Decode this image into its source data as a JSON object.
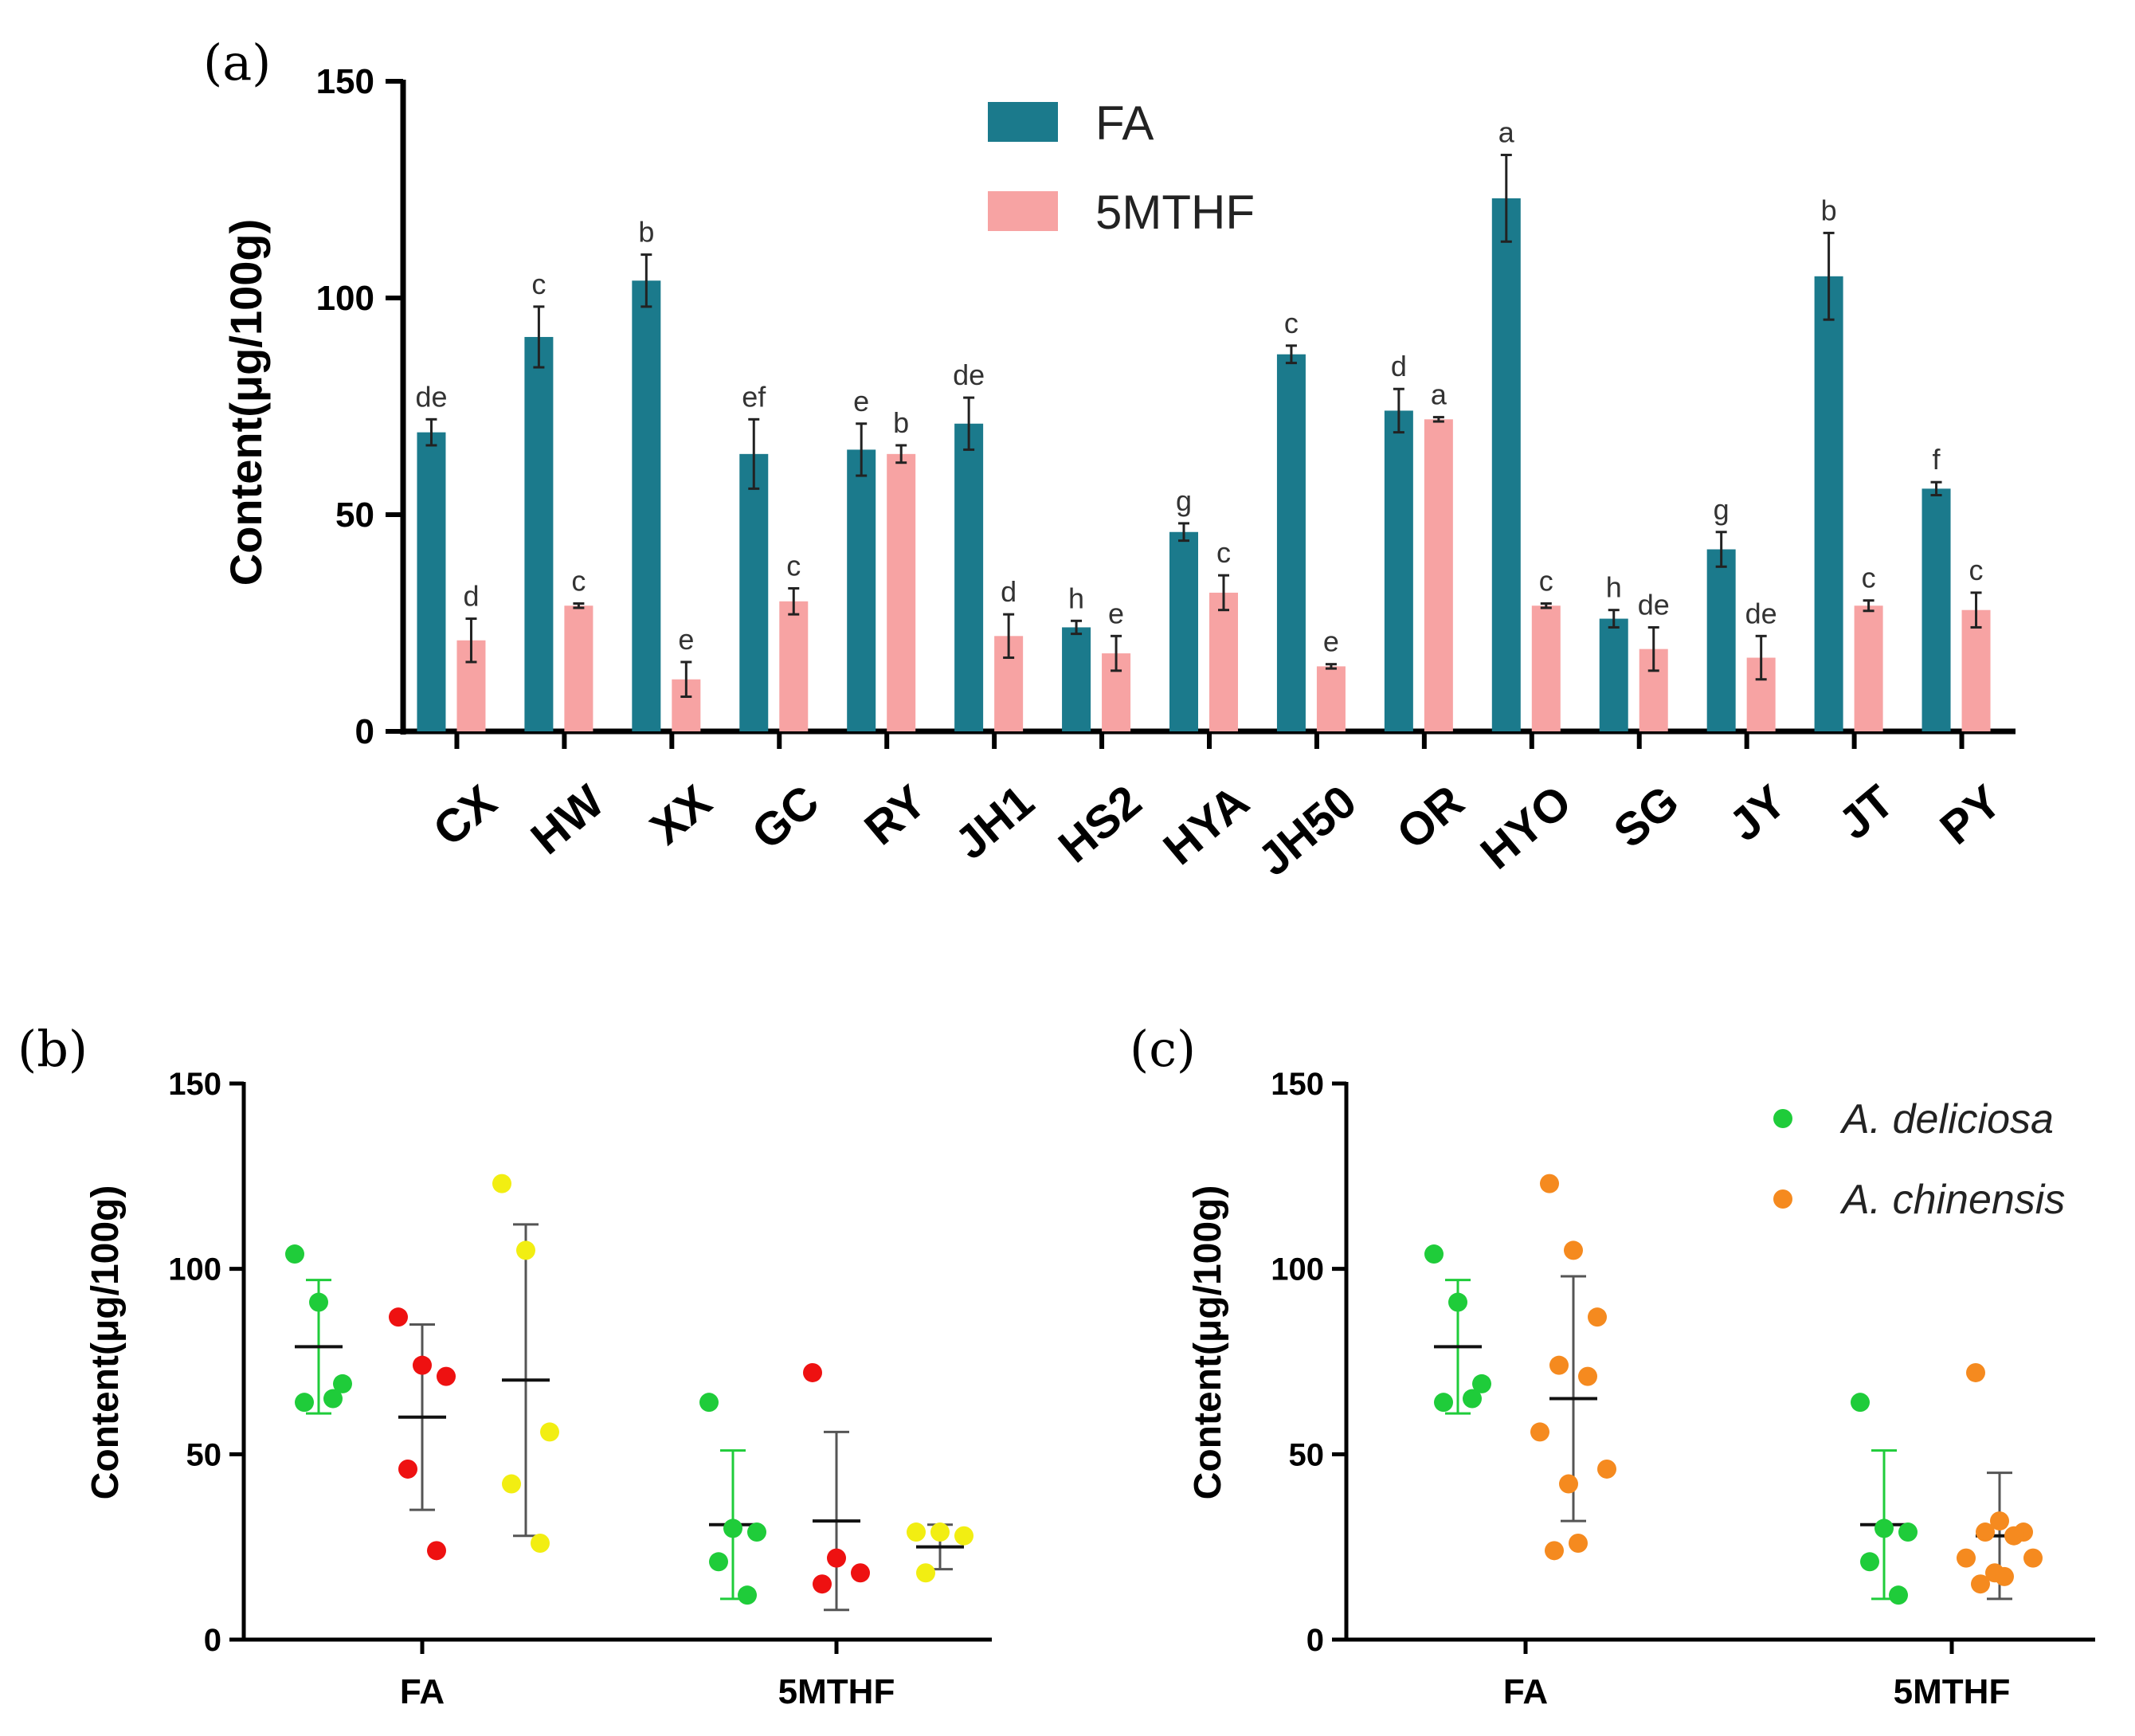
{
  "panels": {
    "a_label": "(a)",
    "b_label": "(b)",
    "c_label": "(c)"
  },
  "colors": {
    "fa_bar": "#1b7a8c",
    "mthf_bar": "#f7a3a3",
    "green": "#1fcc3a",
    "red": "#ee1111",
    "yellow": "#f2ee12",
    "orange": "#f58a1f"
  },
  "chart_data": [
    {
      "id": "a",
      "type": "bar",
      "title": "",
      "xlabel": "",
      "ylabel": "Content(μg/100g)",
      "ylim": [
        0,
        150
      ],
      "yticks": [
        0,
        50,
        100,
        150
      ],
      "legend": {
        "position": "top-center",
        "items": [
          "FA",
          "5MTHF"
        ]
      },
      "categories": [
        "CX",
        "HW",
        "XX",
        "GC",
        "RY",
        "JH1",
        "HS2",
        "HYA",
        "JH50",
        "OR",
        "HYO",
        "SG",
        "JY",
        "JT",
        "PY"
      ],
      "series": [
        {
          "name": "FA",
          "values": [
            69,
            91,
            104,
            64,
            65,
            71,
            24,
            46,
            87,
            74,
            123,
            26,
            42,
            105,
            56
          ],
          "errors": [
            3,
            7,
            6,
            8,
            6,
            6,
            1.5,
            2,
            2,
            5,
            10,
            2,
            4,
            10,
            1.5
          ],
          "letters": [
            "de",
            "c",
            "b",
            "ef",
            "e",
            "de",
            "h",
            "g",
            "c",
            "d",
            "a",
            "h",
            "g",
            "b",
            "f"
          ]
        },
        {
          "name": "5MTHF",
          "values": [
            21,
            29,
            12,
            30,
            64,
            22,
            18,
            32,
            15,
            72,
            29,
            19,
            17,
            29,
            28
          ],
          "errors": [
            5,
            0.5,
            4,
            3,
            2,
            5,
            4,
            4,
            0.5,
            0.5,
            0.5,
            5,
            5,
            1.2,
            4
          ],
          "letters": [
            "d",
            "c",
            "e",
            "c",
            "b",
            "d",
            "e",
            "c",
            "e",
            "a",
            "c",
            "de",
            "de",
            "c",
            "c"
          ]
        }
      ]
    },
    {
      "id": "b",
      "type": "scatter",
      "title": "",
      "xlabel": "",
      "ylabel": "Content(μg/100g)",
      "ylim": [
        0,
        150
      ],
      "yticks": [
        0,
        50,
        100,
        150
      ],
      "groups": [
        "FA",
        "5MTHF"
      ],
      "series": [
        {
          "name": "green",
          "color": "green",
          "FA": [
            104,
            91,
            69,
            64,
            65
          ],
          "5MTHF": [
            64,
            30,
            29,
            21,
            12
          ],
          "FA_mean": 79,
          "FA_sd": 18,
          "5MTHF_mean": 31,
          "5MTHF_sd": 20
        },
        {
          "name": "red",
          "color": "red",
          "FA": [
            87,
            74,
            71,
            46,
            24
          ],
          "5MTHF": [
            72,
            22,
            18,
            15
          ],
          "FA_mean": 60,
          "FA_sd": 25,
          "5MTHF_mean": 32,
          "5MTHF_sd": 24
        },
        {
          "name": "yellow",
          "color": "yellow",
          "FA": [
            123,
            105,
            56,
            42,
            26
          ],
          "5MTHF": [
            29,
            29,
            28,
            18
          ],
          "FA_mean": 70,
          "FA_sd": 42,
          "5MTHF_mean": 25,
          "5MTHF_sd": 6
        }
      ]
    },
    {
      "id": "c",
      "type": "scatter",
      "title": "",
      "xlabel": "",
      "ylabel": "Content(μg/100g)",
      "ylim": [
        0,
        150
      ],
      "yticks": [
        0,
        50,
        100,
        150
      ],
      "groups": [
        "FA",
        "5MTHF"
      ],
      "legend": {
        "position": "top-right",
        "items": [
          "A. deliciosa",
          "A. chinensis"
        ]
      },
      "series": [
        {
          "name": "A. deliciosa",
          "color": "green",
          "FA": [
            104,
            91,
            69,
            64,
            65
          ],
          "5MTHF": [
            64,
            30,
            29,
            21,
            12
          ],
          "FA_mean": 79,
          "FA_sd": 18,
          "5MTHF_mean": 31,
          "5MTHF_sd": 20
        },
        {
          "name": "A. chinensis",
          "color": "orange",
          "FA": [
            123,
            105,
            87,
            74,
            71,
            56,
            46,
            42,
            26,
            24
          ],
          "5MTHF": [
            72,
            32,
            29,
            29,
            28,
            22,
            22,
            18,
            17,
            15
          ],
          "FA_mean": 65,
          "FA_sd": 33,
          "5MTHF_mean": 28,
          "5MTHF_sd": 17
        }
      ]
    }
  ]
}
